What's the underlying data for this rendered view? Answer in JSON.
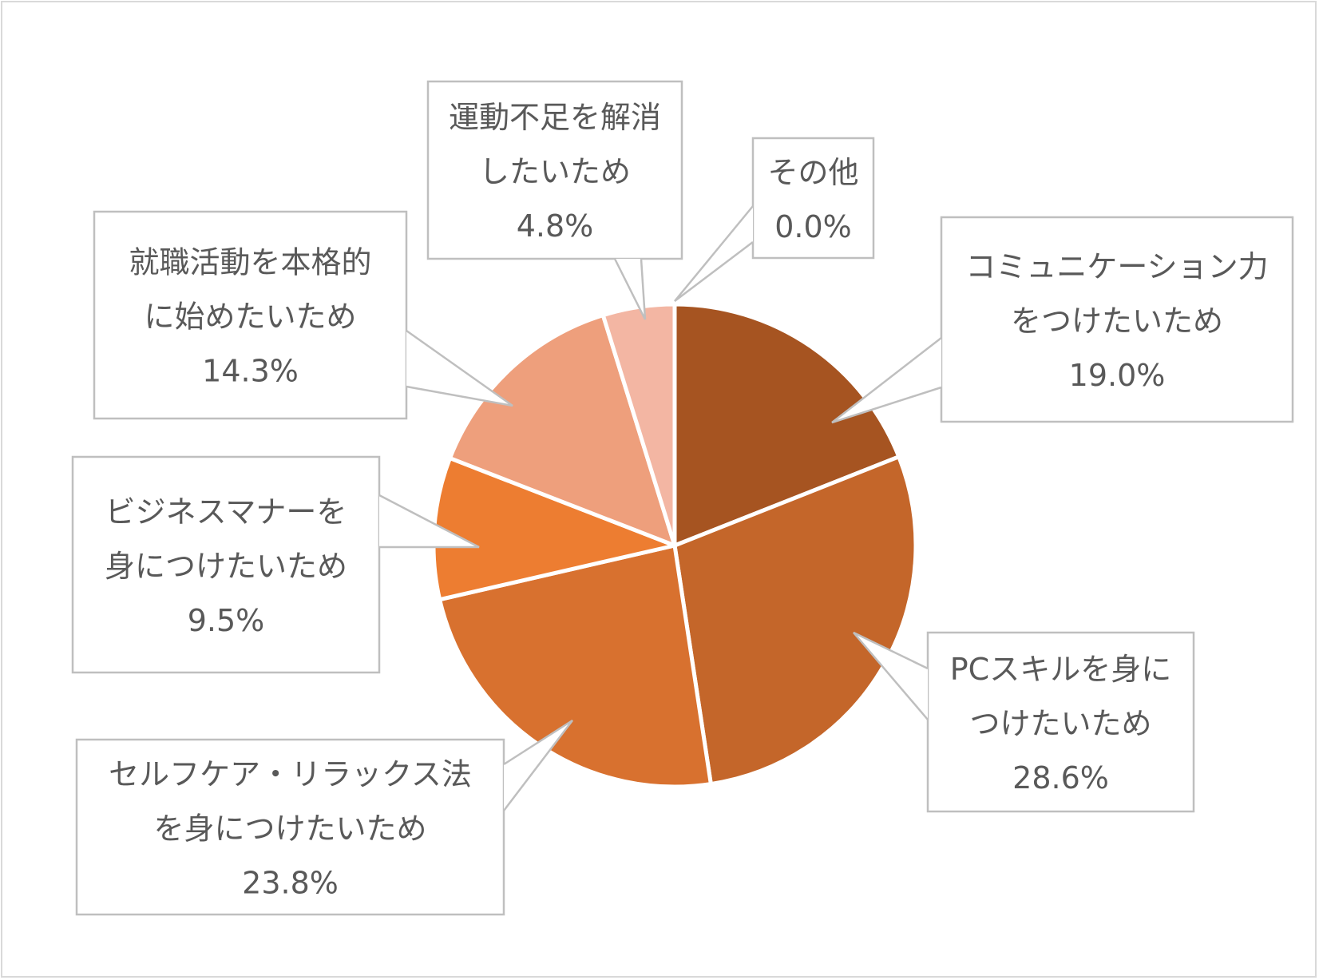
{
  "chart_data": {
    "type": "pie",
    "title": "",
    "unit": "%",
    "start_angle_deg": 0,
    "direction": "clockwise",
    "slices": [
      {
        "label_lines": [
          "コミュニケーション力",
          "をつけたいため"
        ],
        "value": 19.0,
        "value_label": "19.0%",
        "color": "#A65421"
      },
      {
        "label_lines": [
          "PCスキルを身に",
          "つけたいため"
        ],
        "value": 28.6,
        "value_label": "28.6%",
        "color": "#C4662A"
      },
      {
        "label_lines": [
          "セルフケア・リラックス法",
          "を身につけたいため"
        ],
        "value": 23.8,
        "value_label": "23.8%",
        "color": "#D8712F"
      },
      {
        "label_lines": [
          "ビジネスマナーを",
          "身につけたいため"
        ],
        "value": 9.5,
        "value_label": "9.5%",
        "color": "#ED7D31"
      },
      {
        "label_lines": [
          "就職活動を本格的",
          "に始めたいため"
        ],
        "value": 14.3,
        "value_label": "14.3%",
        "color": "#EE9F7C"
      },
      {
        "label_lines": [
          "運動不足を解消",
          "したいため"
        ],
        "value": 4.8,
        "value_label": "4.8%",
        "color": "#F3B6A3"
      },
      {
        "label_lines": [
          "その他"
        ],
        "value": 0.0,
        "value_label": "0.0%",
        "color": "#F8CBAD"
      }
    ],
    "legend": "none",
    "data_labels": "callouts"
  }
}
